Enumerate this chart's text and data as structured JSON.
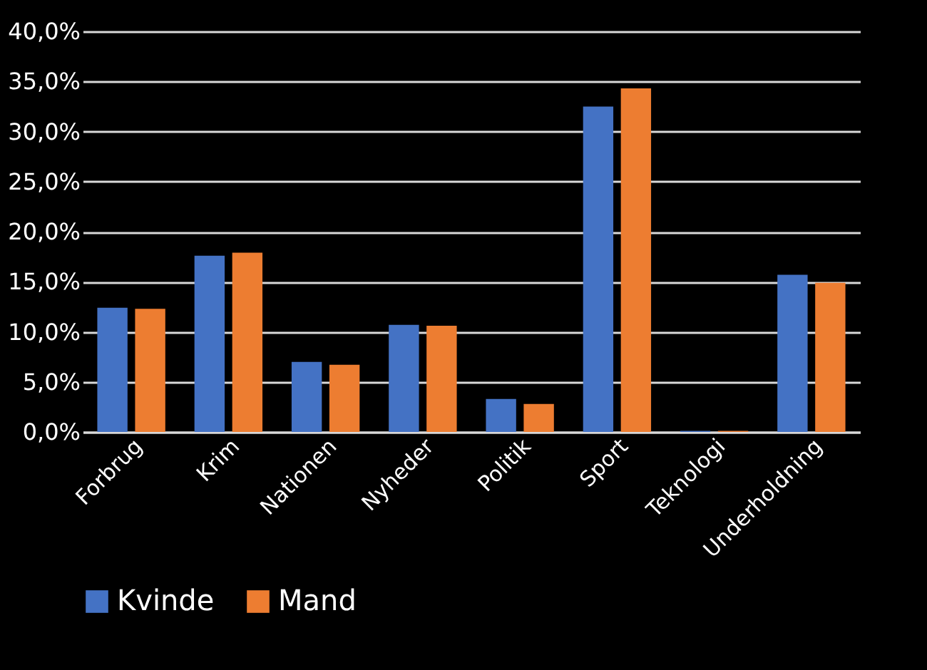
{
  "chart_data": {
    "type": "bar",
    "categories": [
      "Forbrug",
      "Krim",
      "Nationen",
      "Nyheder",
      "Politik",
      "Sport",
      "Teknologi",
      "Underholdning"
    ],
    "series": [
      {
        "name": "Kvinde",
        "color": "#4472c4",
        "values": [
          12.4,
          17.6,
          7.0,
          10.7,
          3.3,
          32.5,
          0.1,
          15.7
        ]
      },
      {
        "name": "Mand",
        "color": "#ed7d31",
        "values": [
          12.3,
          17.9,
          6.7,
          10.6,
          2.8,
          34.3,
          0.1,
          14.9
        ]
      }
    ],
    "ylim": [
      0,
      40
    ],
    "yticks": [
      {
        "value": 0,
        "label": "0,0%"
      },
      {
        "value": 5,
        "label": "5,0%"
      },
      {
        "value": 10,
        "label": "10,0%"
      },
      {
        "value": 15,
        "label": "15,0%"
      },
      {
        "value": 20,
        "label": "20,0%"
      },
      {
        "value": 25,
        "label": "25,0%"
      },
      {
        "value": 30,
        "label": "30,0%"
      },
      {
        "value": 35,
        "label": "35,0%"
      },
      {
        "value": 40,
        "label": "40,0%"
      }
    ],
    "grid": "y",
    "legend": "bottom"
  }
}
